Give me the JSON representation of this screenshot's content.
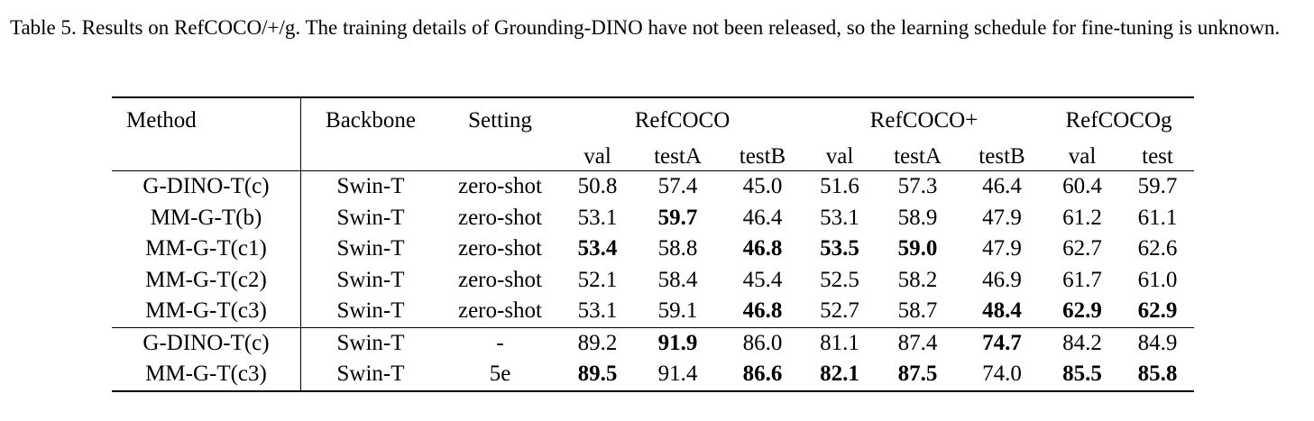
{
  "caption": {
    "label": "Table 5.",
    "text": "Results on RefCOCO/+/g. The training details of Grounding-DINO have not been released, so the learning schedule for fine-tuning is unknown."
  },
  "table": {
    "header": {
      "method": "Method",
      "backbone": "Backbone",
      "setting": "Setting",
      "groups": [
        "RefCOCO",
        "RefCOCO+",
        "RefCOCOg"
      ],
      "subcolumns": [
        "val",
        "testA",
        "testB",
        "val",
        "testA",
        "testB",
        "val",
        "test"
      ]
    },
    "rows": [
      {
        "method": "G-DINO-T(c)",
        "backbone": "Swin-T",
        "setting": "zero-shot",
        "values": [
          "50.8",
          "57.4",
          "45.0",
          "51.6",
          "57.3",
          "46.4",
          "60.4",
          "59.7"
        ],
        "bold": [
          false,
          false,
          false,
          false,
          false,
          false,
          false,
          false
        ]
      },
      {
        "method": "MM-G-T(b)",
        "backbone": "Swin-T",
        "setting": "zero-shot",
        "values": [
          "53.1",
          "59.7",
          "46.4",
          "53.1",
          "58.9",
          "47.9",
          "61.2",
          "61.1"
        ],
        "bold": [
          false,
          true,
          false,
          false,
          false,
          false,
          false,
          false
        ]
      },
      {
        "method": "MM-G-T(c1)",
        "backbone": "Swin-T",
        "setting": "zero-shot",
        "values": [
          "53.4",
          "58.8",
          "46.8",
          "53.5",
          "59.0",
          "47.9",
          "62.7",
          "62.6"
        ],
        "bold": [
          true,
          false,
          true,
          true,
          true,
          false,
          false,
          false
        ]
      },
      {
        "method": "MM-G-T(c2)",
        "backbone": "Swin-T",
        "setting": "zero-shot",
        "values": [
          "52.1",
          "58.4",
          "45.4",
          "52.5",
          "58.2",
          "46.9",
          "61.7",
          "61.0"
        ],
        "bold": [
          false,
          false,
          false,
          false,
          false,
          false,
          false,
          false
        ]
      },
      {
        "method": "MM-G-T(c3)",
        "backbone": "Swin-T",
        "setting": "zero-shot",
        "values": [
          "53.1",
          "59.1",
          "46.8",
          "52.7",
          "58.7",
          "48.4",
          "62.9",
          "62.9"
        ],
        "bold": [
          false,
          false,
          true,
          false,
          false,
          true,
          true,
          true
        ]
      },
      {
        "method": "G-DINO-T(c)",
        "backbone": "Swin-T",
        "setting": "-",
        "values": [
          "89.2",
          "91.9",
          "86.0",
          "81.1",
          "87.4",
          "74.7",
          "84.2",
          "84.9"
        ],
        "bold": [
          false,
          true,
          false,
          false,
          false,
          true,
          false,
          false
        ]
      },
      {
        "method": "MM-G-T(c3)",
        "backbone": "Swin-T",
        "setting": "5e",
        "values": [
          "89.5",
          "91.4",
          "86.6",
          "82.1",
          "87.5",
          "74.0",
          "85.5",
          "85.8"
        ],
        "bold": [
          true,
          false,
          true,
          true,
          true,
          false,
          true,
          true
        ]
      }
    ]
  }
}
